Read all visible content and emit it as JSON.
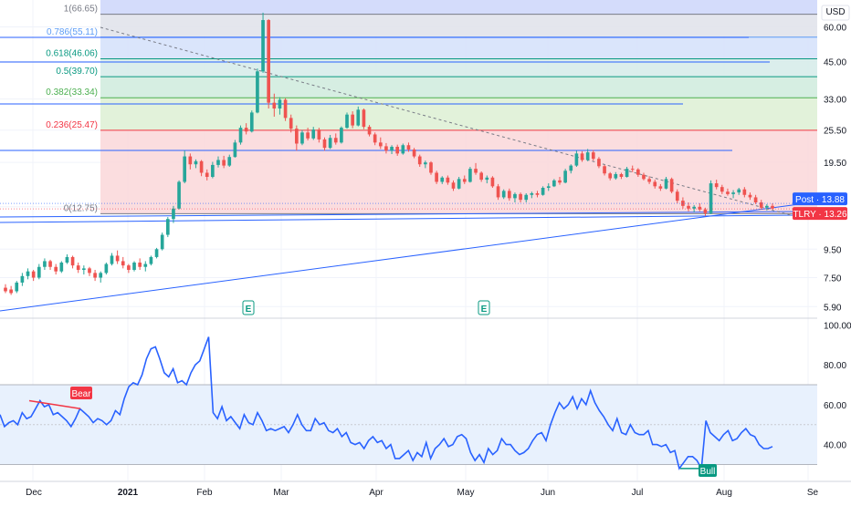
{
  "currency_label": "USD",
  "chart_data": [
    {
      "type": "candlestick",
      "name": "price-pane",
      "symbol_label": "TLRY",
      "y_scale": "log",
      "ylim": [
        5.4,
        75
      ],
      "y_ticks": [
        "60.00",
        "45.00",
        "33.00",
        "25.50",
        "19.50",
        "9.50",
        "7.50",
        "5.90"
      ],
      "x_ticks": [
        "Dec",
        "2021",
        "Feb",
        "Mar",
        "Apr",
        "May",
        "Jun",
        "Jul",
        "Aug",
        "Se"
      ],
      "price_labels": [
        {
          "text": "Post · 13.88",
          "value": 13.88,
          "color": "#2962ff"
        },
        {
          "text": "TLRY · 13.26",
          "value": 13.26,
          "color": "#f23645"
        }
      ],
      "fibonacci": {
        "levels": [
          {
            "label": "1(66.65)",
            "ratio": 1,
            "value": 66.65,
            "color": "#787b86"
          },
          {
            "label": "0.786(55.11)",
            "ratio": 0.786,
            "value": 55.11,
            "color": "#5b9cf6"
          },
          {
            "label": "0.618(46.06)",
            "ratio": 0.618,
            "value": 46.06,
            "color": "#089981"
          },
          {
            "label": "0.5(39.70)",
            "ratio": 0.5,
            "value": 39.7,
            "color": "#089981"
          },
          {
            "label": "0.382(33.34)",
            "ratio": 0.382,
            "value": 33.34,
            "color": "#4caf50"
          },
          {
            "label": "0.236(25.47)",
            "ratio": 0.236,
            "value": 25.47,
            "color": "#f23645"
          },
          {
            "label": "0(12.75)",
            "ratio": 0,
            "value": 12.75,
            "color": "#787b86"
          }
        ]
      },
      "earnings_markers": [
        "E",
        "E"
      ],
      "candles": [
        [
          6.9,
          7.1,
          6.6,
          6.7
        ],
        [
          6.8,
          7.0,
          6.5,
          6.6
        ],
        [
          6.7,
          7.3,
          6.6,
          7.2
        ],
        [
          7.2,
          7.8,
          7.0,
          7.6
        ],
        [
          7.6,
          8.1,
          7.4,
          7.9
        ],
        [
          7.9,
          8.0,
          7.3,
          7.5
        ],
        [
          7.5,
          8.4,
          7.4,
          8.2
        ],
        [
          8.2,
          8.8,
          8.0,
          8.6
        ],
        [
          8.6,
          8.7,
          8.0,
          8.2
        ],
        [
          8.2,
          8.4,
          7.7,
          7.9
        ],
        [
          7.9,
          8.6,
          7.8,
          8.5
        ],
        [
          8.5,
          9.1,
          8.4,
          8.9
        ],
        [
          8.9,
          9.0,
          8.1,
          8.3
        ],
        [
          8.3,
          8.5,
          7.8,
          8.0
        ],
        [
          8.0,
          8.3,
          7.7,
          8.1
        ],
        [
          8.1,
          8.2,
          7.6,
          7.8
        ],
        [
          7.8,
          8.0,
          7.3,
          7.5
        ],
        [
          7.5,
          7.9,
          7.2,
          7.8
        ],
        [
          7.8,
          8.5,
          7.7,
          8.4
        ],
        [
          8.4,
          9.2,
          8.3,
          9.0
        ],
        [
          9.0,
          9.4,
          8.4,
          8.6
        ],
        [
          8.6,
          8.9,
          8.1,
          8.3
        ],
        [
          8.3,
          8.4,
          7.8,
          8.0
        ],
        [
          8.0,
          8.6,
          7.9,
          8.5
        ],
        [
          8.5,
          8.8,
          8.0,
          8.2
        ],
        [
          8.2,
          8.6,
          7.9,
          8.4
        ],
        [
          8.4,
          9.0,
          8.3,
          8.9
        ],
        [
          8.9,
          9.6,
          8.8,
          9.5
        ],
        [
          9.5,
          10.9,
          9.4,
          10.7
        ],
        [
          10.7,
          12.4,
          10.5,
          12.2
        ],
        [
          12.2,
          13.6,
          11.8,
          13.3
        ],
        [
          13.3,
          16.8,
          13.2,
          16.6
        ],
        [
          16.6,
          21.5,
          16.4,
          20.5
        ],
        [
          20.5,
          21.0,
          18.4,
          19.2
        ],
        [
          19.2,
          20.0,
          18.6,
          19.7
        ],
        [
          19.7,
          19.9,
          17.4,
          17.9
        ],
        [
          17.9,
          18.4,
          16.8,
          17.3
        ],
        [
          17.3,
          19.6,
          17.1,
          19.1
        ],
        [
          19.1,
          20.5,
          18.7,
          19.9
        ],
        [
          19.9,
          20.6,
          18.6,
          19.0
        ],
        [
          19.0,
          20.8,
          18.8,
          20.4
        ],
        [
          20.4,
          23.5,
          20.3,
          23.0
        ],
        [
          23.0,
          26.5,
          22.6,
          26.0
        ],
        [
          26.0,
          27.0,
          24.6,
          25.2
        ],
        [
          25.2,
          30.0,
          25.0,
          29.5
        ],
        [
          29.5,
          42.5,
          29.3,
          41.5
        ],
        [
          41.5,
          67.5,
          41.0,
          63.5
        ],
        [
          63.5,
          64.0,
          30.5,
          32.0
        ],
        [
          32.0,
          34.5,
          28.5,
          30.5
        ],
        [
          30.5,
          33.5,
          29.0,
          32.8
        ],
        [
          32.8,
          33.2,
          27.5,
          28.2
        ],
        [
          28.2,
          29.0,
          25.0,
          25.8
        ],
        [
          25.8,
          26.5,
          21.5,
          22.8
        ],
        [
          22.8,
          25.5,
          22.5,
          25.0
        ],
        [
          25.0,
          26.0,
          23.4,
          23.8
        ],
        [
          23.8,
          26.2,
          23.5,
          25.6
        ],
        [
          25.6,
          26.0,
          23.0,
          23.6
        ],
        [
          23.6,
          24.0,
          21.5,
          22.0
        ],
        [
          22.0,
          24.5,
          21.8,
          23.9
        ],
        [
          23.9,
          24.8,
          22.6,
          23.0
        ],
        [
          23.0,
          26.3,
          22.8,
          26.0
        ],
        [
          26.0,
          29.5,
          25.8,
          29.0
        ],
        [
          29.0,
          29.8,
          25.9,
          26.5
        ],
        [
          26.5,
          31.0,
          26.3,
          30.2
        ],
        [
          30.2,
          30.5,
          25.7,
          26.2
        ],
        [
          26.2,
          26.6,
          24.2,
          24.6
        ],
        [
          24.6,
          25.0,
          22.5,
          23.0
        ],
        [
          23.0,
          24.0,
          21.8,
          22.3
        ],
        [
          22.3,
          22.9,
          21.0,
          21.5
        ],
        [
          21.5,
          22.5,
          20.9,
          22.2
        ],
        [
          22.2,
          22.6,
          20.6,
          21.0
        ],
        [
          21.0,
          22.8,
          20.8,
          22.5
        ],
        [
          22.5,
          23.0,
          21.3,
          21.7
        ],
        [
          21.7,
          22.0,
          20.2,
          20.5
        ],
        [
          20.5,
          20.8,
          18.8,
          19.2
        ],
        [
          19.2,
          19.8,
          18.6,
          19.5
        ],
        [
          19.5,
          19.7,
          17.6,
          17.9
        ],
        [
          17.9,
          18.2,
          16.3,
          16.6
        ],
        [
          16.6,
          17.4,
          16.3,
          17.2
        ],
        [
          17.2,
          17.5,
          16.2,
          16.5
        ],
        [
          16.5,
          16.8,
          15.4,
          15.7
        ],
        [
          15.7,
          17.3,
          15.6,
          17.0
        ],
        [
          17.0,
          17.5,
          16.3,
          16.6
        ],
        [
          16.6,
          18.8,
          16.5,
          18.5
        ],
        [
          18.5,
          19.4,
          17.6,
          17.9
        ],
        [
          17.9,
          18.1,
          16.6,
          16.9
        ],
        [
          16.9,
          17.5,
          16.4,
          17.2
        ],
        [
          17.2,
          17.4,
          15.8,
          16.0
        ],
        [
          16.0,
          16.3,
          14.3,
          14.6
        ],
        [
          14.6,
          15.6,
          14.4,
          15.4
        ],
        [
          15.4,
          15.7,
          14.2,
          14.5
        ],
        [
          14.5,
          15.2,
          14.0,
          15.0
        ],
        [
          15.0,
          15.2,
          14.0,
          14.3
        ],
        [
          14.3,
          15.1,
          14.0,
          14.9
        ],
        [
          14.9,
          15.3,
          14.5,
          15.1
        ],
        [
          15.1,
          15.4,
          14.6,
          14.9
        ],
        [
          14.9,
          16.0,
          14.8,
          15.8
        ],
        [
          15.8,
          16.4,
          15.4,
          16.0
        ],
        [
          16.0,
          17.0,
          15.9,
          16.8
        ],
        [
          16.8,
          17.3,
          16.2,
          16.5
        ],
        [
          16.5,
          18.5,
          16.4,
          18.2
        ],
        [
          18.2,
          19.2,
          17.8,
          19.0
        ],
        [
          19.0,
          21.5,
          18.8,
          21.0
        ],
        [
          21.0,
          21.4,
          19.6,
          19.9
        ],
        [
          19.9,
          21.8,
          19.7,
          21.2
        ],
        [
          21.2,
          21.6,
          19.8,
          20.1
        ],
        [
          20.1,
          20.4,
          18.6,
          18.9
        ],
        [
          18.9,
          19.1,
          17.5,
          17.8
        ],
        [
          17.8,
          18.0,
          16.8,
          17.1
        ],
        [
          17.1,
          18.0,
          16.9,
          17.7
        ],
        [
          17.7,
          17.9,
          17.0,
          17.3
        ],
        [
          17.3,
          18.8,
          17.2,
          18.5
        ],
        [
          18.5,
          19.0,
          18.0,
          18.4
        ],
        [
          18.4,
          18.6,
          17.3,
          17.6
        ],
        [
          17.6,
          17.9,
          16.8,
          17.0
        ],
        [
          17.0,
          17.4,
          16.3,
          16.6
        ],
        [
          16.6,
          16.9,
          15.7,
          16.0
        ],
        [
          16.0,
          16.3,
          15.4,
          15.7
        ],
        [
          15.7,
          17.3,
          15.6,
          17.0
        ],
        [
          17.0,
          17.2,
          15.1,
          15.3
        ],
        [
          15.3,
          15.6,
          13.9,
          14.2
        ],
        [
          14.2,
          14.6,
          13.3,
          13.6
        ],
        [
          13.6,
          14.0,
          13.0,
          13.3
        ],
        [
          13.3,
          13.7,
          12.9,
          13.5
        ],
        [
          13.5,
          13.9,
          13.0,
          13.2
        ],
        [
          13.2,
          13.4,
          12.5,
          12.8
        ],
        [
          12.8,
          16.8,
          12.7,
          16.4
        ],
        [
          16.4,
          16.9,
          15.6,
          15.9
        ],
        [
          15.9,
          16.2,
          15.0,
          15.3
        ],
        [
          15.3,
          15.7,
          14.8,
          15.0
        ],
        [
          15.0,
          15.5,
          14.5,
          15.2
        ],
        [
          15.2,
          15.8,
          14.9,
          15.6
        ],
        [
          15.6,
          15.9,
          14.6,
          14.9
        ],
        [
          14.9,
          15.2,
          14.3,
          14.6
        ],
        [
          14.6,
          14.9,
          13.8,
          14.0
        ],
        [
          14.0,
          14.3,
          13.2,
          13.4
        ],
        [
          13.4,
          13.8,
          13.1,
          13.6
        ],
        [
          13.6,
          13.9,
          13.2,
          13.3
        ]
      ]
    },
    {
      "type": "line",
      "name": "rsi-pane",
      "ylim": [
        22,
        102
      ],
      "y_ticks": [
        "100.00",
        "80.00",
        "60.00",
        "40.00"
      ],
      "band": [
        30,
        70
      ],
      "mid_line": 50,
      "values": [
        55,
        49,
        51,
        52,
        50,
        56,
        53,
        54,
        58,
        62,
        59,
        60,
        55,
        56,
        54,
        52,
        49,
        53,
        58,
        56,
        54,
        51,
        53,
        52,
        50,
        52,
        57,
        55,
        63,
        69,
        71,
        70,
        75,
        83,
        88,
        89,
        83,
        76,
        74,
        78,
        71,
        72,
        70,
        76,
        80,
        82,
        88,
        94,
        56,
        53,
        59,
        52,
        54,
        51,
        48,
        55,
        51,
        50,
        56,
        52,
        47,
        48,
        47,
        48,
        49,
        46,
        50,
        55,
        50,
        47,
        47,
        53,
        50,
        51,
        47,
        46,
        48,
        44,
        46,
        41,
        40,
        41,
        38,
        42,
        44,
        41,
        42,
        38,
        40,
        33,
        33,
        35,
        37,
        32,
        36,
        34,
        41,
        33,
        38,
        40,
        43,
        39,
        40,
        44,
        45,
        43,
        36,
        32,
        35,
        31,
        38,
        35,
        37,
        43,
        40,
        40,
        37,
        35,
        36,
        38,
        42,
        45,
        46,
        42,
        50,
        56,
        61,
        58,
        60,
        64,
        58,
        63,
        60,
        67,
        61,
        57,
        54,
        50,
        47,
        53,
        46,
        45,
        50,
        46,
        45,
        45,
        47,
        40,
        40,
        39,
        40,
        36,
        37,
        28,
        31,
        34,
        34,
        32,
        28,
        52,
        46,
        44,
        42,
        45,
        47,
        42,
        43,
        46,
        48,
        45,
        44,
        40,
        38,
        38,
        39
      ],
      "annotations": [
        {
          "text": "Bear",
          "color": "#f23645"
        },
        {
          "text": "Bull",
          "color": "#089981"
        }
      ]
    }
  ]
}
